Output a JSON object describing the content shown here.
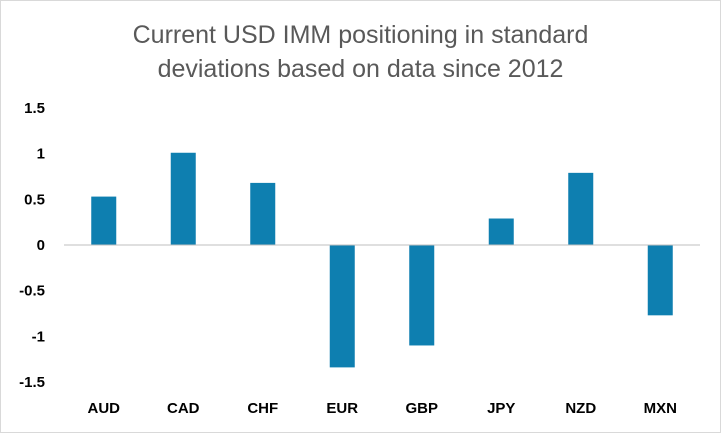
{
  "chart_data": {
    "type": "bar",
    "title": "Current USD IMM positioning in standard deviations based on data since 2012",
    "title_lines": [
      "Current USD IMM positioning in standard",
      "deviations based on data since 2012"
    ],
    "xlabel": "",
    "ylabel": "",
    "categories": [
      "AUD",
      "CAD",
      "CHF",
      "EUR",
      "GBP",
      "JPY",
      "NZD",
      "MXN"
    ],
    "values": [
      0.53,
      1.01,
      0.68,
      -1.34,
      -1.1,
      0.29,
      0.79,
      -0.77
    ],
    "ylim": [
      -1.5,
      1.5
    ],
    "yticks": [
      1.5,
      1,
      0.5,
      0,
      -0.5,
      -1,
      -1.5
    ],
    "ytick_labels": [
      "1.5",
      "1",
      "0.5",
      "0",
      "-0.5",
      "-1",
      "-1.5"
    ],
    "grid": false,
    "legend": "none",
    "bar_color": "#0e7fb0",
    "axis_color": "#bfbfbf"
  }
}
